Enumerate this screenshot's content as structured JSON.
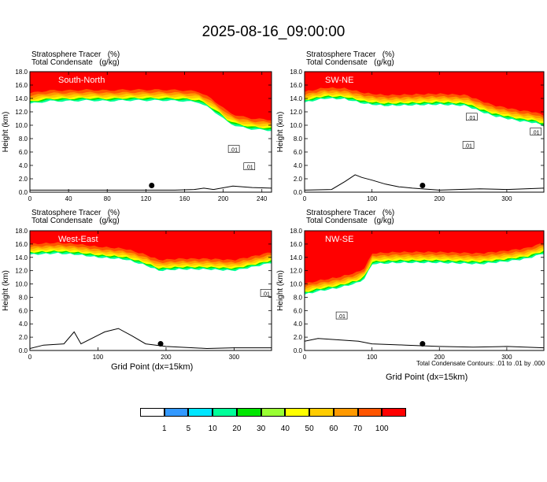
{
  "figure": {
    "title": "2025-08-16_09:00:00",
    "panel_label_line1": "Stratosphere Tracer   (%)",
    "panel_label_line2": "Total Condensate   (g/kg)",
    "xlabel": "Grid Point (dx=15km)",
    "contour_note": "Total Condensate Contours: .01 to .01 by .000"
  },
  "colorbar": {
    "levels": [
      "1",
      "5",
      "10",
      "20",
      "30",
      "40",
      "50",
      "60",
      "70",
      "100"
    ],
    "colors": [
      "#ffffff",
      "#3399ff",
      "#00e6ff",
      "#00ff99",
      "#00e600",
      "#99ff33",
      "#ffff00",
      "#ffcc00",
      "#ff9900",
      "#ff5500",
      "#ff0000"
    ]
  },
  "chart_data": [
    {
      "type": "heatmap",
      "name": "South-North",
      "ylabel": "Height (km)",
      "ylim": [
        0,
        18
      ],
      "yticks": [
        "0.0",
        "2.0",
        "4.0",
        "6.0",
        "8.0",
        "10.0",
        "12.0",
        "14.0",
        "16.0",
        "18.0"
      ],
      "xlim": [
        0,
        250
      ],
      "xticks": [
        0,
        40,
        80,
        120,
        160,
        200,
        240
      ],
      "tropopause_km": [
        [
          0,
          13.8
        ],
        [
          20,
          14.2
        ],
        [
          40,
          14.2
        ],
        [
          60,
          14.3
        ],
        [
          80,
          14.2
        ],
        [
          100,
          14.3
        ],
        [
          120,
          14.3
        ],
        [
          140,
          14.3
        ],
        [
          160,
          14.2
        ],
        [
          175,
          14.0
        ],
        [
          185,
          13.2
        ],
        [
          195,
          12.2
        ],
        [
          205,
          11.0
        ],
        [
          215,
          10.4
        ],
        [
          230,
          10.0
        ],
        [
          250,
          9.8
        ]
      ],
      "terrain_km": [
        [
          0,
          0.3
        ],
        [
          100,
          0.3
        ],
        [
          150,
          0.3
        ],
        [
          170,
          0.4
        ],
        [
          180,
          0.6
        ],
        [
          190,
          0.4
        ],
        [
          210,
          0.9
        ],
        [
          230,
          0.7
        ],
        [
          250,
          0.6
        ]
      ],
      "marker": {
        "x": 126,
        "y": 1.0
      },
      "contour_labels": [
        {
          "text": ".01",
          "x": 211,
          "y": 6.4
        },
        {
          "text": ".01",
          "x": 227,
          "y": 3.8
        }
      ]
    },
    {
      "type": "heatmap",
      "name": "SW-NE",
      "ylabel": "Height (km)",
      "ylim": [
        0,
        18
      ],
      "yticks": [
        "0.0",
        "2.0",
        "4.0",
        "6.0",
        "8.0",
        "10.0",
        "12.0",
        "14.0",
        "16.0",
        "18.0"
      ],
      "xlim": [
        0,
        355
      ],
      "xticks": [
        0,
        100,
        200,
        300
      ],
      "tropopause_km": [
        [
          0,
          14.0
        ],
        [
          30,
          14.6
        ],
        [
          60,
          14.5
        ],
        [
          90,
          13.8
        ],
        [
          120,
          13.5
        ],
        [
          160,
          13.6
        ],
        [
          200,
          13.7
        ],
        [
          240,
          13.5
        ],
        [
          260,
          12.7
        ],
        [
          280,
          12.0
        ],
        [
          300,
          11.6
        ],
        [
          320,
          11.2
        ],
        [
          340,
          11.0
        ],
        [
          355,
          10.5
        ]
      ],
      "terrain_km": [
        [
          0,
          0.3
        ],
        [
          40,
          0.4
        ],
        [
          60,
          1.6
        ],
        [
          75,
          2.6
        ],
        [
          85,
          2.2
        ],
        [
          100,
          1.8
        ],
        [
          120,
          1.2
        ],
        [
          140,
          0.8
        ],
        [
          160,
          0.6
        ],
        [
          200,
          0.3
        ],
        [
          260,
          0.5
        ],
        [
          300,
          0.4
        ],
        [
          355,
          0.6
        ]
      ],
      "marker": {
        "x": 175,
        "y": 1.0
      },
      "contour_labels": [
        {
          "text": ".01",
          "x": 248,
          "y": 11.2
        },
        {
          "text": ".01",
          "x": 243,
          "y": 7.0
        },
        {
          "text": ".01",
          "x": 343,
          "y": 9.0
        }
      ]
    },
    {
      "type": "heatmap",
      "name": "West-East",
      "ylabel": "Height (km)",
      "ylim": [
        0,
        18
      ],
      "yticks": [
        "0.0",
        "2.0",
        "4.0",
        "6.0",
        "8.0",
        "10.0",
        "12.0",
        "14.0",
        "16.0",
        "18.0"
      ],
      "xlim": [
        0,
        355
      ],
      "xticks": [
        0,
        100,
        200,
        300
      ],
      "tropopause_km": [
        [
          0,
          15.0
        ],
        [
          40,
          15.2
        ],
        [
          70,
          15.0
        ],
        [
          100,
          14.6
        ],
        [
          140,
          14.3
        ],
        [
          170,
          13.4
        ],
        [
          190,
          12.6
        ],
        [
          220,
          12.8
        ],
        [
          260,
          12.8
        ],
        [
          300,
          12.6
        ],
        [
          330,
          13.2
        ],
        [
          355,
          13.8
        ]
      ],
      "terrain_km": [
        [
          0,
          0.3
        ],
        [
          20,
          0.8
        ],
        [
          50,
          1.0
        ],
        [
          65,
          2.8
        ],
        [
          75,
          1.0
        ],
        [
          110,
          2.8
        ],
        [
          130,
          3.3
        ],
        [
          150,
          2.2
        ],
        [
          170,
          1.0
        ],
        [
          200,
          0.6
        ],
        [
          260,
          0.3
        ],
        [
          300,
          0.4
        ],
        [
          355,
          0.4
        ]
      ],
      "marker": {
        "x": 192,
        "y": 1.0
      },
      "contour_labels": [
        {
          "text": ".01",
          "x": 347,
          "y": 8.6
        }
      ]
    },
    {
      "type": "heatmap",
      "name": "NW-SE",
      "ylabel": "Height (km)",
      "ylim": [
        0,
        18
      ],
      "yticks": [
        "0.0",
        "2.0",
        "4.0",
        "6.0",
        "8.0",
        "10.0",
        "12.0",
        "14.0",
        "16.0",
        "18.0"
      ],
      "xlim": [
        0,
        355
      ],
      "xticks": [
        0,
        100,
        200,
        300
      ],
      "tropopause_km": [
        [
          0,
          9.0
        ],
        [
          20,
          9.5
        ],
        [
          50,
          10.0
        ],
        [
          80,
          10.8
        ],
        [
          90,
          11.5
        ],
        [
          100,
          13.6
        ],
        [
          140,
          13.8
        ],
        [
          200,
          13.8
        ],
        [
          260,
          13.6
        ],
        [
          300,
          14.0
        ],
        [
          330,
          14.4
        ],
        [
          355,
          15.2
        ]
      ],
      "terrain_km": [
        [
          0,
          1.4
        ],
        [
          20,
          1.8
        ],
        [
          50,
          1.6
        ],
        [
          80,
          1.4
        ],
        [
          100,
          1.0
        ],
        [
          150,
          0.8
        ],
        [
          200,
          0.6
        ],
        [
          250,
          0.5
        ],
        [
          300,
          0.6
        ],
        [
          355,
          0.4
        ]
      ],
      "marker": {
        "x": 175,
        "y": 1.0
      },
      "contour_labels": [
        {
          "text": ".01",
          "x": 55,
          "y": 5.2
        }
      ]
    }
  ]
}
